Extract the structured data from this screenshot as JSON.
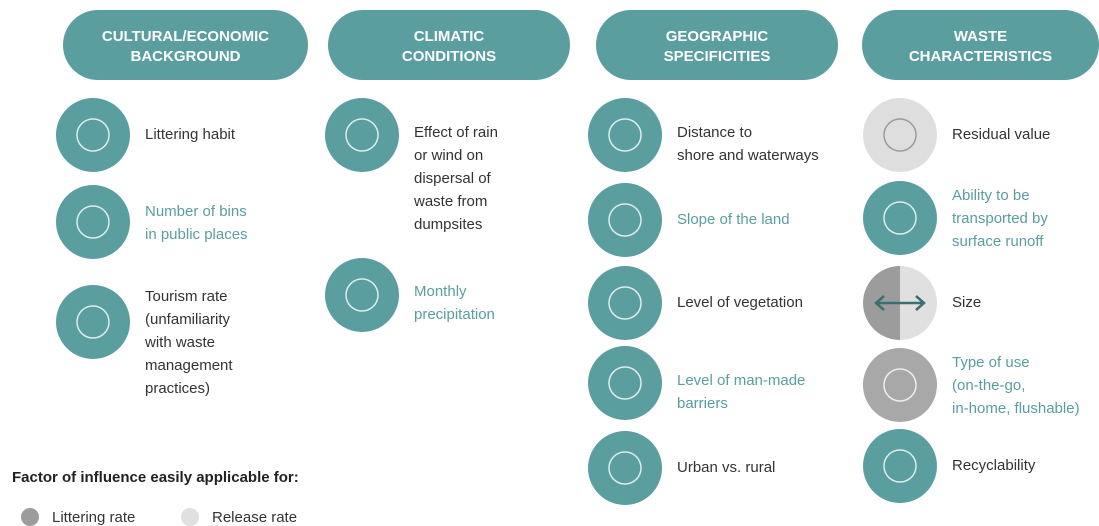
{
  "columns": [
    {
      "header": [
        "CULTURAL/ECONOMIC",
        "BACKGROUND"
      ],
      "items": [
        {
          "label": [
            "Littering habit"
          ],
          "text_color": "#333333",
          "icon_color": "#5a9ea0"
        },
        {
          "label": [
            "Number of bins",
            "in public places"
          ],
          "text_color": "#5a9ea0",
          "icon_color": "#5a9ea0"
        },
        {
          "label": [
            "Tourism rate",
            "(unfamiliarity",
            "with waste",
            "management",
            "practices)"
          ],
          "text_color": "#333333",
          "icon_color": "#5a9ea0"
        }
      ]
    },
    {
      "header": [
        "CLIMATIC",
        "CONDITIONS"
      ],
      "items": [
        {
          "label": [
            "Effect of rain",
            "or wind on",
            "dispersal of",
            "waste from",
            "dumpsites"
          ],
          "text_color": "#333333",
          "icon_color": "#5a9ea0"
        },
        {
          "label": [
            "Monthly",
            "precipitation"
          ],
          "text_color": "#5a9ea0",
          "icon_color": "#5a9ea0"
        }
      ]
    },
    {
      "header": [
        "GEOGRAPHIC",
        "SPECIFICITIES"
      ],
      "items": [
        {
          "label": [
            "Distance to",
            "shore and waterways"
          ],
          "text_color": "#333333",
          "icon_color": "#5a9ea0"
        },
        {
          "label": [
            "Slope of the land"
          ],
          "text_color": "#5a9ea0",
          "icon_color": "#5a9ea0"
        },
        {
          "label": [
            "Level of vegetation"
          ],
          "text_color": "#333333",
          "icon_color": "#5a9ea0"
        },
        {
          "label": [
            "Level of man-made",
            "barriers"
          ],
          "text_color": "#5a9ea0",
          "icon_color": "#5a9ea0"
        },
        {
          "label": [
            "Urban vs. rural"
          ],
          "text_color": "#333333",
          "icon_color": "#5a9ea0"
        }
      ]
    },
    {
      "header": [
        "WASTE",
        "CHARACTERISTICS"
      ],
      "items": [
        {
          "label": [
            "Residual value"
          ],
          "text_color": "#333333",
          "icon_color": "#dedede"
        },
        {
          "label": [
            "Ability to be",
            "transported by",
            "surface runoff"
          ],
          "text_color": "#5a9ea0",
          "icon_color": "#5a9ea0"
        },
        {
          "label": [
            "Size"
          ],
          "text_color": "#333333",
          "icon_color": [
            "#9c9c9c",
            "#e0e0e0"
          ]
        },
        {
          "label": [
            "Type of use",
            "(on-the-go,",
            "in-home, flushable)"
          ],
          "text_color": "#5a9ea0",
          "icon_color": "#a8a8a8"
        },
        {
          "label": [
            "Recyclability"
          ],
          "text_color": "#333333",
          "icon_color": "#5a9ea0"
        }
      ]
    }
  ],
  "legend": {
    "title": "Factor of influence easily applicable for:",
    "entries": [
      {
        "label": "Littering rate",
        "color": "#9c9c9c"
      },
      {
        "label": "Release rate",
        "color": "#e0e0e0"
      }
    ]
  }
}
